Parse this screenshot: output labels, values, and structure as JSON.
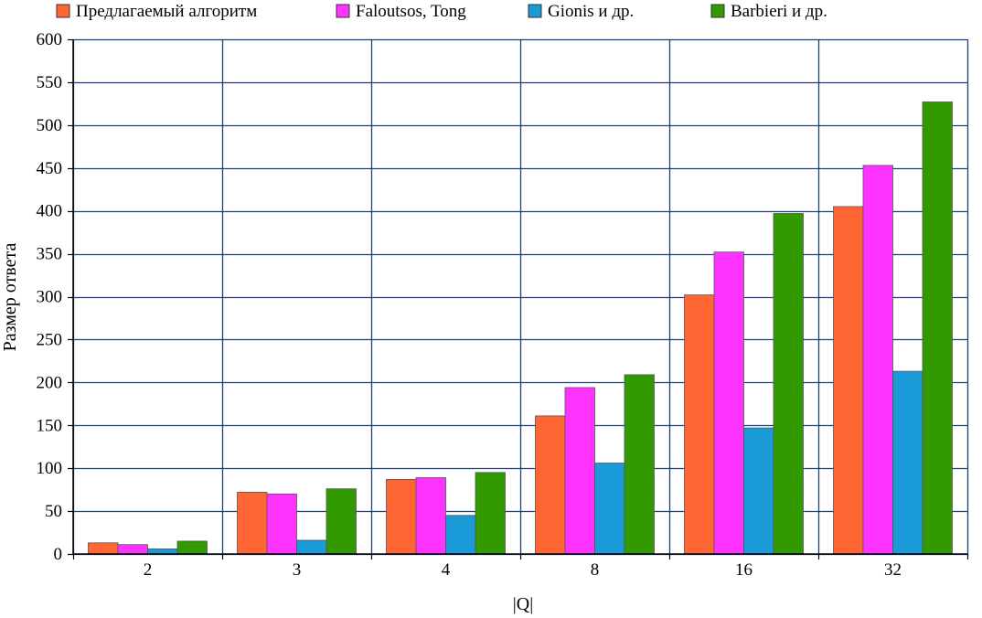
{
  "chart_data": {
    "type": "bar",
    "title": "",
    "xlabel": "|Q|",
    "ylabel": "Размер ответа",
    "categories": [
      "2",
      "3",
      "4",
      "8",
      "16",
      "32"
    ],
    "ylim": [
      0,
      600
    ],
    "yticks": [
      0,
      50,
      100,
      150,
      200,
      250,
      300,
      350,
      400,
      450,
      500,
      550,
      600
    ],
    "grid": true,
    "legend_position": "top",
    "series": [
      {
        "name": "Предлагаемый алгоритм",
        "color": "#ff6633",
        "values": [
          13,
          72,
          87,
          161,
          302,
          405
        ]
      },
      {
        "name": "Faloutsos, Tong",
        "color": "#ff33ff",
        "values": [
          11,
          70,
          89,
          194,
          352,
          453
        ]
      },
      {
        "name": "Gionis и др.",
        "color": "#1a9ad6",
        "values": [
          6,
          16,
          45,
          106,
          147,
          213
        ]
      },
      {
        "name": "Barbieri и др.",
        "color": "#339900",
        "values": [
          15,
          76,
          95,
          209,
          397,
          527
        ]
      }
    ]
  }
}
